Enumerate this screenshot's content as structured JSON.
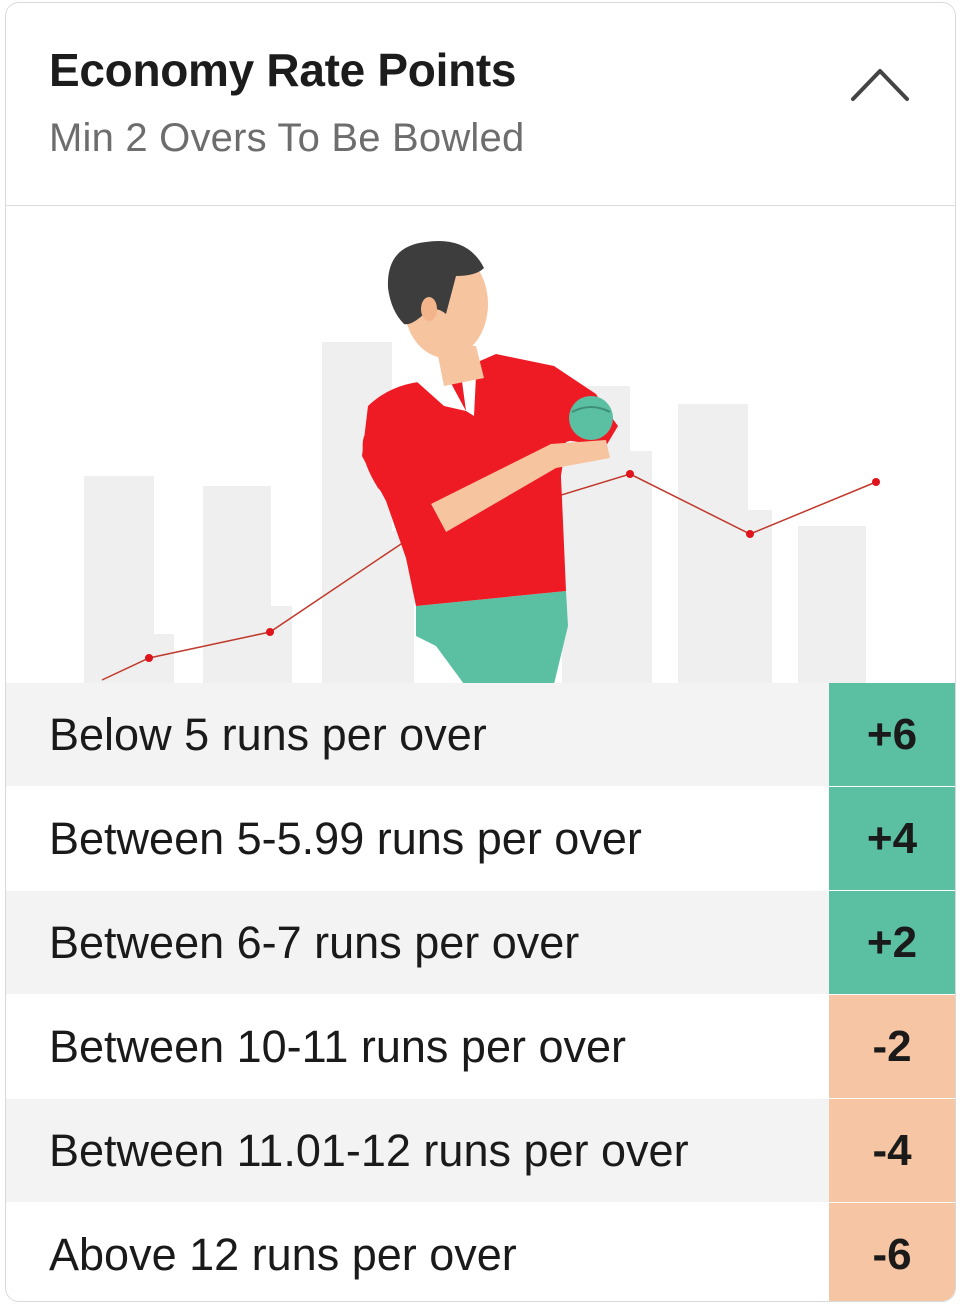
{
  "header": {
    "title": "Economy Rate Points",
    "subtitle": "Min 2 Overs To Be Bowled",
    "toggle_icon": "chevron-up-icon"
  },
  "illustration": {
    "subject": "bowler-illustration",
    "colors": {
      "shirt": "#ee1b24",
      "pants": "#5bbfa2",
      "skin": "#f7c4a0",
      "hair": "#3a3a3a",
      "bars": "#efefef",
      "trend_line": "#c0392b"
    }
  },
  "colors": {
    "positive": "#5bbfa2",
    "negative": "#f6c6a4",
    "row_shade": "#f3f3f3",
    "row_plain": "#ffffff"
  },
  "rules": [
    {
      "label": "Below 5 runs per over",
      "points": "+6",
      "kind": "positive",
      "shade": true
    },
    {
      "label": "Between 5-5.99 runs per over",
      "points": "+4",
      "kind": "positive",
      "shade": false
    },
    {
      "label": "Between 6-7 runs per over",
      "points": "+2",
      "kind": "positive",
      "shade": true
    },
    {
      "label": "Between 10-11 runs per over",
      "points": "-2",
      "kind": "negative",
      "shade": false
    },
    {
      "label": "Between 11.01-12 runs per over",
      "points": "-4",
      "kind": "negative",
      "shade": true
    },
    {
      "label": "Above 12 runs per over",
      "points": "-6",
      "kind": "negative",
      "shade": false
    }
  ]
}
